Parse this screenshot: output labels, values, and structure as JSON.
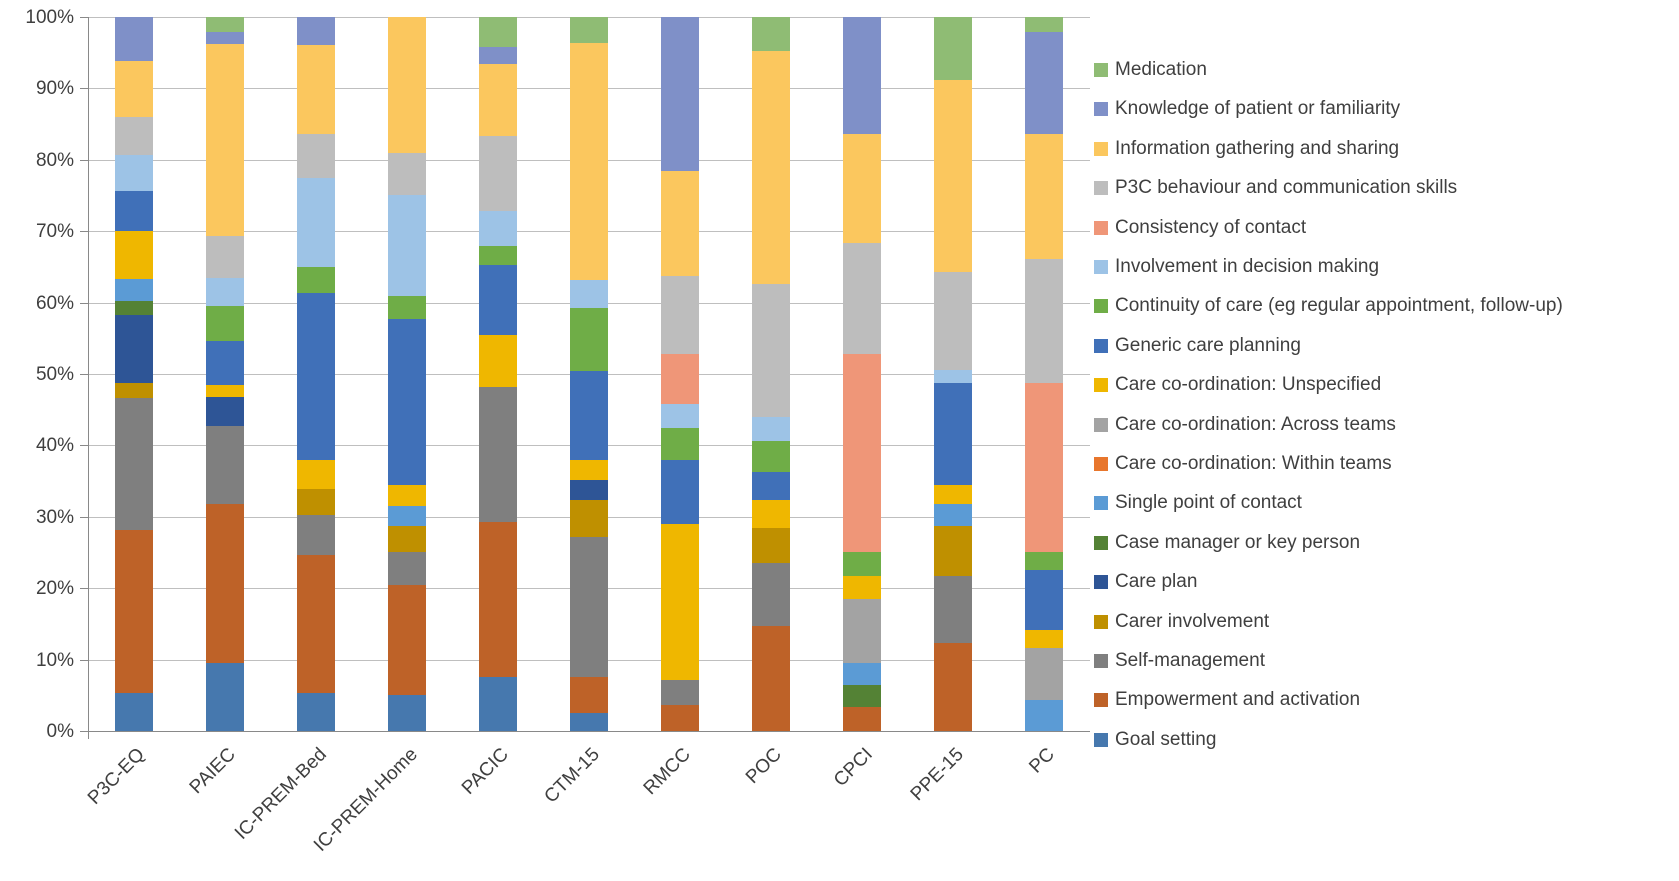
{
  "chart_data": {
    "type": "bar",
    "subtype": "100%-stacked-column",
    "title": "",
    "xlabel": "",
    "ylabel": "",
    "ylim": [
      0,
      100
    ],
    "grid": true,
    "legend_position": "right",
    "x_tick_rotation": 45,
    "y_ticks": [
      "0%",
      "10%",
      "20%",
      "30%",
      "40%",
      "50%",
      "60%",
      "70%",
      "80%",
      "90%",
      "100%"
    ],
    "categories": [
      "P3C-EQ",
      "PAIEC",
      "IC-PREM-Bed",
      "IC-PREM-Home",
      "PACIC",
      "CTM-15",
      "RMCC",
      "POC",
      "CPCI",
      "PPE-15",
      "PC"
    ],
    "stack_order_note": "series listed bottom-to-top of each column; values are percent of column total",
    "series": [
      {
        "name": "Goal setting",
        "color": "#4678AE",
        "values": [
          5.3,
          9.5,
          5.3,
          5.0,
          7.5,
          2.5,
          0,
          0,
          0,
          0,
          0
        ]
      },
      {
        "name": "Empowerment and activation",
        "color": "#BE6228",
        "values": [
          22.8,
          22.3,
          19.4,
          15.5,
          21.8,
          5.0,
          3.6,
          14.7,
          3.3,
          12.3,
          0
        ]
      },
      {
        "name": "Self-management",
        "color": "#7F7F7F",
        "values": [
          18.6,
          10.9,
          5.5,
          4.6,
          18.9,
          19.7,
          3.6,
          8.8,
          0,
          9.4,
          0
        ]
      },
      {
        "name": "Carer involvement",
        "color": "#BF9000",
        "values": [
          2.1,
          0,
          3.7,
          3.6,
          0,
          5.2,
          0,
          4.9,
          0,
          7.0,
          0
        ]
      },
      {
        "name": "Care plan",
        "color": "#2E5596",
        "values": [
          9.5,
          4.1,
          0,
          0,
          0,
          2.7,
          0,
          0,
          0,
          0,
          0
        ]
      },
      {
        "name": "Case manager or key person",
        "color": "#548235",
        "values": [
          1.9,
          0,
          0,
          0,
          0,
          0,
          0,
          0,
          3.1,
          0,
          0
        ]
      },
      {
        "name": "Single point of contact",
        "color": "#5B9BD5",
        "values": [
          3.1,
          0,
          0,
          2.8,
          0,
          0,
          0,
          0,
          3.1,
          3.1,
          4.3
        ]
      },
      {
        "name": "Care co-ordination: Within teams",
        "color": "#E8762C",
        "values": [
          0,
          0,
          0,
          0,
          0,
          0,
          0,
          0,
          0,
          0,
          0
        ]
      },
      {
        "name": "Care co-ordination: Across teams",
        "color": "#A3A3A3",
        "values": [
          0,
          0,
          0,
          0,
          0,
          0,
          0,
          0,
          9.0,
          0,
          7.3
        ]
      },
      {
        "name": "Care co-ordination: Unspecified",
        "color": "#EFB700",
        "values": [
          6.7,
          1.7,
          4.0,
          3.0,
          7.3,
          2.8,
          21.8,
          4.0,
          3.2,
          2.7,
          2.5
        ]
      },
      {
        "name": "Generic care planning",
        "color": "#4070B8",
        "values": [
          5.7,
          6.1,
          23.4,
          23.2,
          9.8,
          12.5,
          8.9,
          3.9,
          0,
          14.3,
          8.5
        ]
      },
      {
        "name": "Continuity of care (eg regular appointment, follow-up)",
        "color": "#6FAD47",
        "values": [
          0,
          4.9,
          3.7,
          3.3,
          2.7,
          8.8,
          4.5,
          4.3,
          3.4,
          0,
          2.4
        ]
      },
      {
        "name": "Involvement in decision making",
        "color": "#9DC3E6",
        "values": [
          5.0,
          4.0,
          12.5,
          14.1,
          4.9,
          4.0,
          3.4,
          3.4,
          0,
          1.8,
          0
        ]
      },
      {
        "name": "Consistency of contact",
        "color": "#EF9678",
        "values": [
          0,
          0,
          0,
          0,
          0,
          0,
          7.0,
          0,
          27.7,
          0,
          23.7
        ]
      },
      {
        "name": "P3C behaviour and communication skills",
        "color": "#BDBDBD",
        "values": [
          5.3,
          5.9,
          6.1,
          5.8,
          10.4,
          0,
          11.0,
          18.6,
          15.6,
          13.7,
          17.4
        ]
      },
      {
        "name": "Information gathering and sharing",
        "color": "#FBC75E",
        "values": [
          7.8,
          26.8,
          12.5,
          19.1,
          10.1,
          33.2,
          14.6,
          32.6,
          15.2,
          26.9,
          17.4
        ]
      },
      {
        "name": "Knowledge of patient or familiarity",
        "color": "#7F90C8",
        "values": [
          6.2,
          1.7,
          3.9,
          0,
          2.4,
          0,
          21.6,
          0,
          16.4,
          0,
          14.3
        ]
      },
      {
        "name": "Medication",
        "color": "#8FBC74",
        "values": [
          0,
          2.1,
          0,
          0,
          4.2,
          3.6,
          0,
          4.8,
          0,
          8.8,
          2.1
        ]
      }
    ],
    "legend_items_top_to_bottom": [
      "Medication",
      "Knowledge of patient or familiarity",
      "Information gathering and sharing",
      "P3C behaviour and communication skills",
      "Consistency of contact",
      "Involvement in decision making",
      "Continuity of care (eg regular appointment, follow-up)",
      "Generic care planning",
      "Care co-ordination: Unspecified",
      "Care co-ordination: Across teams",
      "Care co-ordination: Within teams",
      "Single point of contact",
      "Case manager or key person",
      "Care plan",
      "Carer involvement",
      "Self-management",
      "Empowerment and activation",
      "Goal setting"
    ]
  }
}
